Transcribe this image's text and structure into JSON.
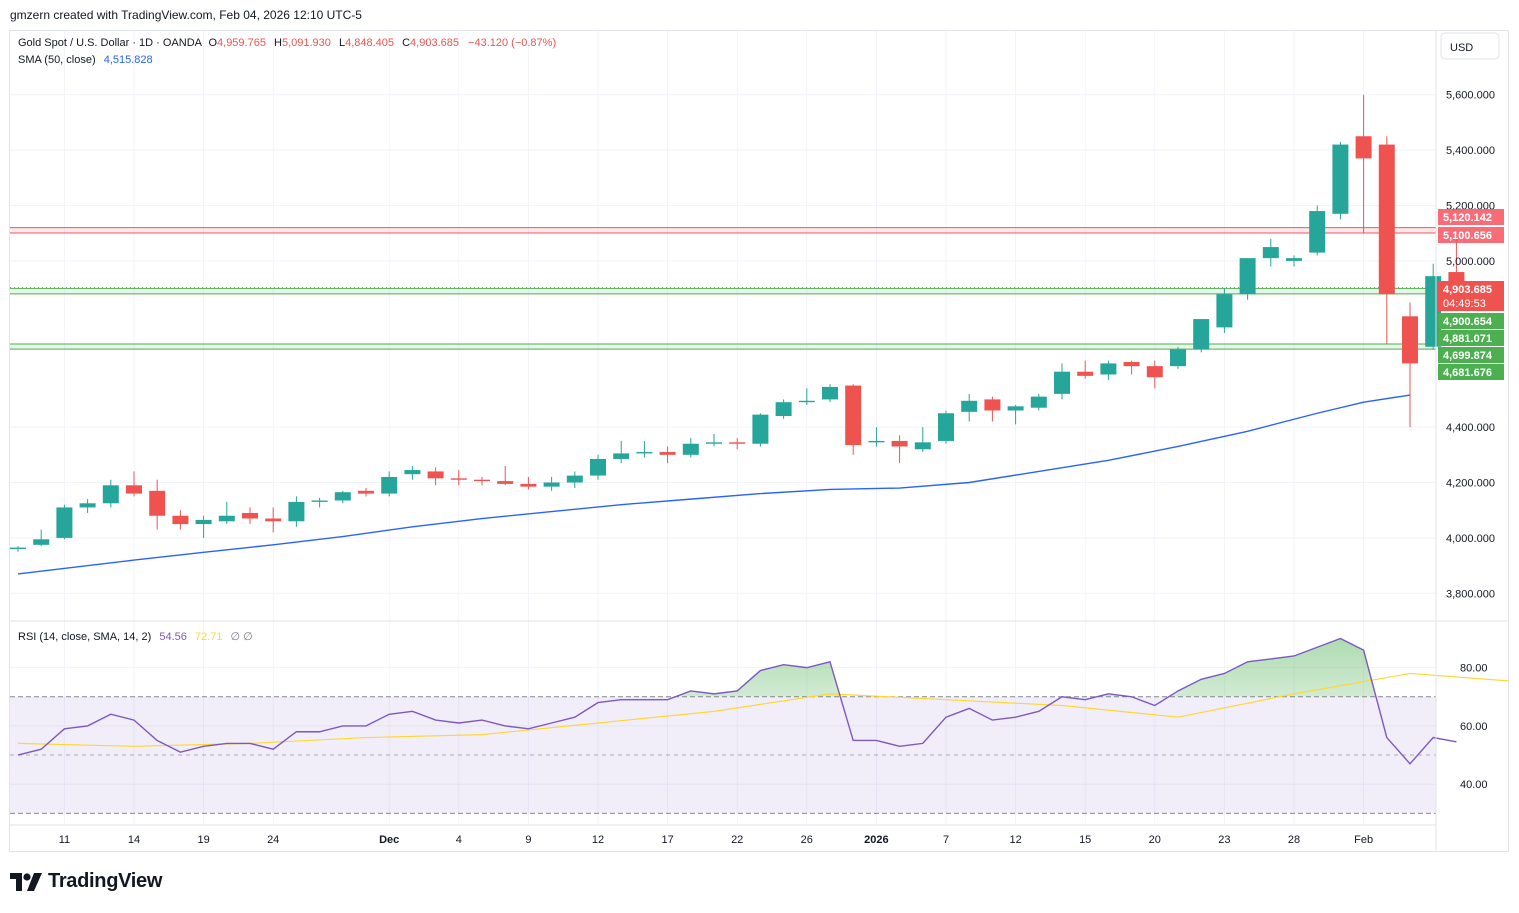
{
  "credit": "gmzern created with TradingView.com, Feb 04, 2026 12:10 UTC-5",
  "currency": "USD",
  "brand": "TradingView",
  "legend": {
    "symbol": "Gold Spot / U.S. Dollar · 1D · OANDA",
    "o_label": "O",
    "o_value": "4,959.765",
    "h_label": "H",
    "h_value": "5,091.930",
    "l_label": "L",
    "l_value": "4,848.405",
    "c_label": "C",
    "c_value": "4,903.685",
    "change": "−43.120 (−0.87%)",
    "sma_label": "SMA (50, close)",
    "sma_value": "4,515.828",
    "rsi_label": "RSI (14, close, SMA, 14, 2)",
    "rsi_value": "54.56",
    "rsi_sma_value": "72.71",
    "rsi_extra": "∅ ∅"
  },
  "colors": {
    "up": "#26a69a",
    "down": "#ef5350",
    "sma": "#2962ff",
    "rsi": "#7e57c2",
    "rsi_ma": "#fdd835",
    "res_line": "#f7525f",
    "sup_line": "#4caf50",
    "text": "#131722",
    "muted": "#787b86"
  },
  "chart_data": [
    {
      "type": "candlestick",
      "price_ticks": [
        "5,600.000",
        "5,400.000",
        "5,200.000",
        "5,000.000",
        "4,400.000",
        "4,200.000",
        "4,000.000",
        "3,800.000"
      ],
      "ylim": [
        3700,
        5830
      ],
      "x_ticks": [
        {
          "label": "11",
          "bar": 2
        },
        {
          "label": "14",
          "bar": 5
        },
        {
          "label": "19",
          "bar": 8
        },
        {
          "label": "24",
          "bar": 11
        },
        {
          "label": "Dec",
          "bar": 16,
          "bold": true
        },
        {
          "label": "4",
          "bar": 19
        },
        {
          "label": "9",
          "bar": 22
        },
        {
          "label": "12",
          "bar": 25
        },
        {
          "label": "17",
          "bar": 28
        },
        {
          "label": "22",
          "bar": 31
        },
        {
          "label": "26",
          "bar": 34
        },
        {
          "label": "2026",
          "bar": 37,
          "bold": true
        },
        {
          "label": "7",
          "bar": 40
        },
        {
          "label": "12",
          "bar": 43
        },
        {
          "label": "15",
          "bar": 46
        },
        {
          "label": "20",
          "bar": 49
        },
        {
          "label": "23",
          "bar": 52
        },
        {
          "label": "28",
          "bar": 55
        },
        {
          "label": "Feb",
          "bar": 58
        }
      ],
      "candles": [
        [
          3960,
          3970,
          3950,
          3965
        ],
        [
          3975,
          4030,
          3970,
          3995
        ],
        [
          4000,
          4120,
          3995,
          4110
        ],
        [
          4110,
          4140,
          4090,
          4125
        ],
        [
          4125,
          4210,
          4110,
          4190
        ],
        [
          4190,
          4240,
          4150,
          4160
        ],
        [
          4170,
          4210,
          4030,
          4080
        ],
        [
          4080,
          4100,
          4030,
          4050
        ],
        [
          4050,
          4080,
          4000,
          4065
        ],
        [
          4060,
          4130,
          4050,
          4080
        ],
        [
          4090,
          4110,
          4050,
          4070
        ],
        [
          4070,
          4110,
          4020,
          4060
        ],
        [
          4060,
          4150,
          4040,
          4130
        ],
        [
          4130,
          4145,
          4110,
          4135
        ],
        [
          4135,
          4170,
          4125,
          4165
        ],
        [
          4170,
          4180,
          4150,
          4160
        ],
        [
          4160,
          4240,
          4150,
          4220
        ],
        [
          4230,
          4260,
          4210,
          4245
        ],
        [
          4240,
          4255,
          4190,
          4215
        ],
        [
          4215,
          4245,
          4190,
          4210
        ],
        [
          4210,
          4220,
          4190,
          4205
        ],
        [
          4205,
          4260,
          4190,
          4195
        ],
        [
          4195,
          4220,
          4175,
          4185
        ],
        [
          4185,
          4220,
          4170,
          4200
        ],
        [
          4200,
          4240,
          4180,
          4225
        ],
        [
          4225,
          4300,
          4210,
          4285
        ],
        [
          4285,
          4350,
          4270,
          4305
        ],
        [
          4305,
          4350,
          4290,
          4310
        ],
        [
          4310,
          4330,
          4270,
          4300
        ],
        [
          4300,
          4360,
          4290,
          4340
        ],
        [
          4340,
          4375,
          4330,
          4345
        ],
        [
          4345,
          4360,
          4320,
          4340
        ],
        [
          4340,
          4450,
          4330,
          4445
        ],
        [
          4440,
          4500,
          4430,
          4490
        ],
        [
          4490,
          4540,
          4480,
          4495
        ],
        [
          4500,
          4555,
          4490,
          4545
        ],
        [
          4550,
          4555,
          4300,
          4335
        ],
        [
          4345,
          4400,
          4330,
          4350
        ],
        [
          4350,
          4370,
          4270,
          4330
        ],
        [
          4320,
          4400,
          4310,
          4345
        ],
        [
          4350,
          4460,
          4340,
          4450
        ],
        [
          4455,
          4520,
          4420,
          4495
        ],
        [
          4500,
          4510,
          4420,
          4460
        ],
        [
          4460,
          4480,
          4410,
          4475
        ],
        [
          4470,
          4520,
          4460,
          4510
        ],
        [
          4520,
          4630,
          4500,
          4600
        ],
        [
          4600,
          4640,
          4575,
          4585
        ],
        [
          4590,
          4640,
          4570,
          4630
        ],
        [
          4635,
          4640,
          4590,
          4620
        ],
        [
          4620,
          4640,
          4540,
          4580
        ],
        [
          4620,
          4690,
          4610,
          4680
        ],
        [
          4680,
          4790,
          4670,
          4790
        ],
        [
          4760,
          4900,
          4740,
          4880
        ],
        [
          4880,
          5010,
          4860,
          5010
        ],
        [
          5010,
          5080,
          4980,
          5050
        ],
        [
          5000,
          5020,
          4980,
          5010
        ],
        [
          5030,
          5200,
          5020,
          5180
        ],
        [
          5170,
          5430,
          5150,
          5420
        ],
        [
          5450,
          5600,
          5100,
          5370
        ],
        [
          5420,
          5450,
          4700,
          4880
        ],
        [
          4800,
          4850,
          4400,
          4630
        ],
        [
          4690,
          4990,
          4680,
          4945
        ],
        [
          4959.765,
          5091.93,
          4848.405,
          4903.685
        ]
      ],
      "sma_50": [
        [
          0,
          3870
        ],
        [
          5,
          3920
        ],
        [
          8,
          3948
        ],
        [
          11,
          3975
        ],
        [
          14,
          4005
        ],
        [
          17,
          4040
        ],
        [
          20,
          4070
        ],
        [
          23,
          4095
        ],
        [
          26,
          4120
        ],
        [
          29,
          4140
        ],
        [
          32,
          4160
        ],
        [
          35,
          4175
        ],
        [
          38,
          4180
        ],
        [
          41,
          4200
        ],
        [
          44,
          4240
        ],
        [
          47,
          4280
        ],
        [
          50,
          4330
        ],
        [
          53,
          4385
        ],
        [
          56,
          4450
        ],
        [
          58,
          4490
        ],
        [
          60,
          4515.828
        ]
      ],
      "levels": [
        {
          "price": 5120.142,
          "label": "5,120.142",
          "kind": "resistance"
        },
        {
          "price": 5100.656,
          "label": "5,100.656",
          "kind": "resistance"
        },
        {
          "price": 4903.685,
          "label": "4,903.685",
          "countdown": "04:49:53",
          "kind": "last"
        },
        {
          "price": 4900.654,
          "label": "4,900.654",
          "kind": "support"
        },
        {
          "price": 4881.071,
          "label": "4,881.071",
          "kind": "support"
        },
        {
          "price": 4699.874,
          "label": "4,699.874",
          "kind": "support"
        },
        {
          "price": 4681.676,
          "label": "4,681.676",
          "kind": "support"
        }
      ]
    },
    {
      "type": "line",
      "name": "RSI",
      "ticks": [
        "80.00",
        "60.00",
        "40.00"
      ],
      "ylim": [
        26,
        96
      ],
      "band": [
        30,
        70
      ],
      "midline": 50,
      "rsi": [
        50,
        52,
        59,
        60,
        64,
        62,
        55,
        51,
        53,
        54,
        54,
        52,
        58,
        58,
        60,
        60,
        64,
        65,
        62,
        61,
        62,
        60,
        59,
        61,
        63,
        68,
        69,
        69,
        69,
        72,
        71,
        72,
        79,
        81,
        80,
        82,
        55,
        55,
        53,
        54,
        63,
        66,
        62,
        63,
        65,
        70,
        69,
        71,
        70,
        67,
        72,
        76,
        78,
        82,
        83,
        84,
        87,
        90,
        86,
        56,
        47,
        56,
        54.56
      ],
      "rsi_ma": [
        [
          0,
          54
        ],
        [
          5,
          53
        ],
        [
          10,
          54
        ],
        [
          15,
          56
        ],
        [
          20,
          57
        ],
        [
          25,
          61
        ],
        [
          30,
          65
        ],
        [
          35,
          71
        ],
        [
          40,
          69
        ],
        [
          45,
          67
        ],
        [
          50,
          63
        ],
        [
          55,
          71
        ],
        [
          60,
          78
        ],
        [
          65,
          75
        ],
        [
          68,
          72.71
        ]
      ]
    }
  ]
}
